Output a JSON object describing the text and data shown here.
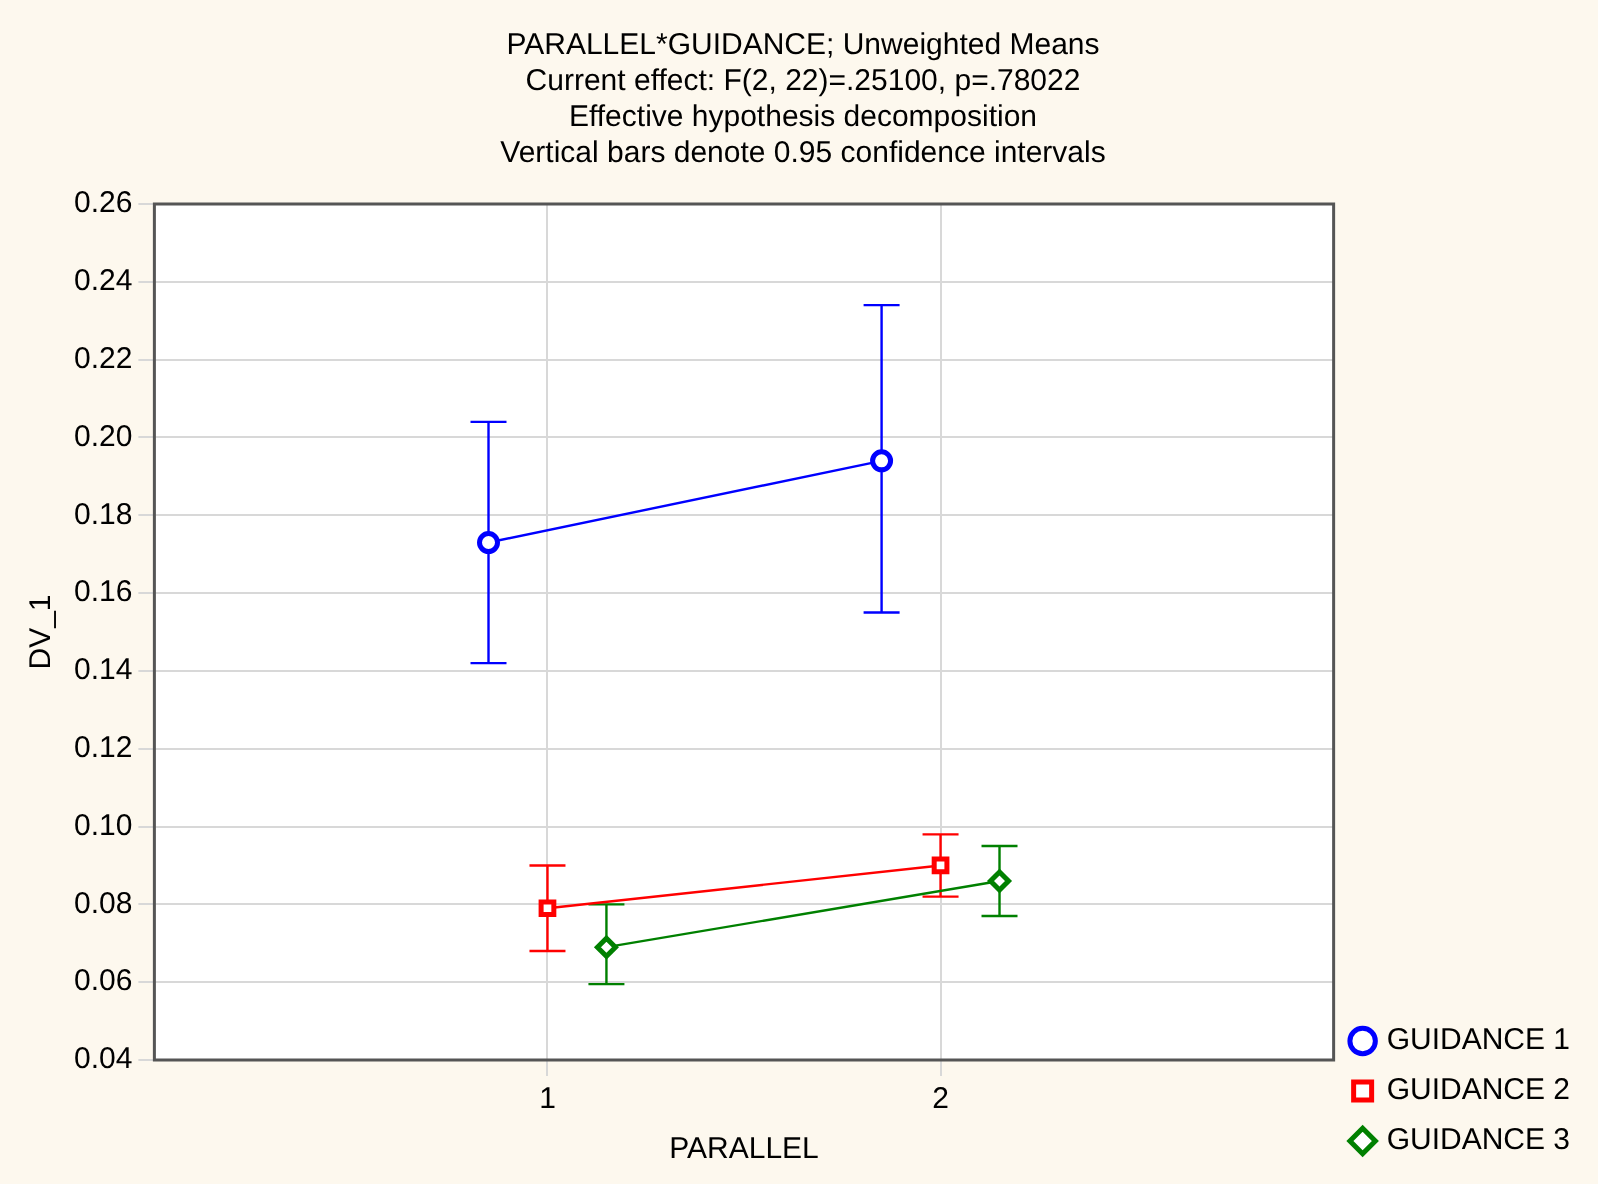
{
  "chart_data": {
    "type": "line",
    "title": "PARALLEL*GUIDANCE; Unweighted Means",
    "subtitle": "Current effect: F(2, 22)=.25100, p=.78022",
    "annotations": [
      "Effective hypothesis decomposition",
      "Vertical bars denote 0.95 confidence intervals"
    ],
    "xlabel": "PARALLEL",
    "ylabel": "DV_1",
    "xlim": [
      0,
      3
    ],
    "xticks": [
      1,
      2
    ],
    "ylim": [
      0.04,
      0.26
    ],
    "yticks": [
      0.04,
      0.06,
      0.08,
      {
        "value": 0.1,
        "label": "0.10"
      },
      0.12,
      0.14,
      0.16,
      0.18,
      {
        "value": 0.2,
        "label": "0.20"
      },
      0.22,
      0.24,
      0.26
    ],
    "grid": true,
    "legend": "bottom right",
    "line_style": "solid",
    "series": [
      {
        "name": "GUIDANCE 1",
        "color": "#0000ff",
        "marker": "circle",
        "x": [
          0.85,
          1.85
        ],
        "values": [
          0.173,
          0.194
        ],
        "errors": [
          [
            0.142,
            0.204
          ],
          [
            0.155,
            0.234
          ]
        ]
      },
      {
        "name": "GUIDANCE 2",
        "color": "#ff0000",
        "marker": "square",
        "x": [
          1,
          2
        ],
        "values": [
          0.079,
          0.09
        ],
        "errors": [
          [
            0.068,
            0.09
          ],
          [
            0.082,
            0.098
          ]
        ]
      },
      {
        "name": "GUIDANCE 3",
        "color": "#008000",
        "marker": "diamond",
        "x": [
          1.15,
          2.15
        ],
        "values": [
          0.069,
          0.086
        ],
        "errors": [
          [
            0.0595,
            0.08
          ],
          [
            0.077,
            0.095
          ]
        ]
      }
    ]
  }
}
